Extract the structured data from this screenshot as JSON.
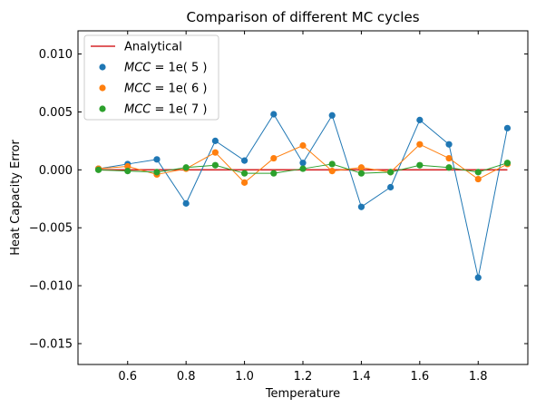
{
  "chart_data": {
    "type": "line",
    "title": "Comparison of different MC cycles",
    "xlabel": "Temperature",
    "ylabel": "Heat Capacity Error",
    "xlim": [
      0.43,
      1.97
    ],
    "ylim": [
      -0.0168,
      0.012
    ],
    "xticks": [
      0.6,
      0.8,
      1.0,
      1.2,
      1.4,
      1.6,
      1.8
    ],
    "xtick_labels": [
      "0.6",
      "0.8",
      "1.0",
      "1.2",
      "1.4",
      "1.6",
      "1.8"
    ],
    "yticks": [
      0.01,
      0.005,
      0.0,
      -0.005,
      -0.01,
      -0.015
    ],
    "ytick_labels": [
      "0.010",
      "0.005",
      "0.000",
      "−0.005",
      "−0.010",
      "−0.015"
    ],
    "grid": false,
    "legend_position": "top-left",
    "x": [
      0.5,
      0.6,
      0.7,
      0.8,
      0.9,
      1.0,
      1.1,
      1.2,
      1.3,
      1.4,
      1.5,
      1.6,
      1.7,
      1.8,
      1.9
    ],
    "series": [
      {
        "name": "Analytical",
        "legend_prefix": "",
        "legend_value": "",
        "style": "line",
        "color": "#d62728",
        "values": [
          0,
          0,
          0,
          0,
          0,
          0,
          0,
          0,
          0,
          0,
          0,
          0,
          0,
          0,
          0
        ]
      },
      {
        "name": "MCC = 1e( 5 )",
        "legend_prefix": "MCC",
        "legend_value": " = 1e( 5 )",
        "style": "line+marker",
        "color": "#1f77b4",
        "values": [
          0.0001,
          0.0005,
          0.0009,
          -0.0029,
          0.0025,
          0.0008,
          0.0048,
          0.0006,
          0.0047,
          -0.0032,
          -0.0015,
          0.0043,
          0.0022,
          -0.0093,
          0.0036
        ]
      },
      {
        "name": "MCC = 1e( 6 )",
        "legend_prefix": "MCC",
        "legend_value": " = 1e( 6 )",
        "style": "line+marker",
        "color": "#ff7f0e",
        "values": [
          0.0001,
          0.0003,
          -0.0004,
          0.0001,
          0.0015,
          -0.0011,
          0.001,
          0.0021,
          -0.0001,
          0.0002,
          -0.0002,
          0.0022,
          0.001,
          -0.0008,
          0.0005
        ]
      },
      {
        "name": "MCC = 1e( 7 )",
        "legend_prefix": "MCC",
        "legend_value": " = 1e( 7 )",
        "style": "line+marker",
        "color": "#2ca02c",
        "values": [
          0.0,
          -0.0001,
          -0.0002,
          0.0002,
          0.0004,
          -0.0003,
          -0.0003,
          0.0001,
          0.0005,
          -0.0003,
          -0.0002,
          0.0004,
          0.0002,
          -0.0002,
          0.0006
        ]
      }
    ]
  }
}
